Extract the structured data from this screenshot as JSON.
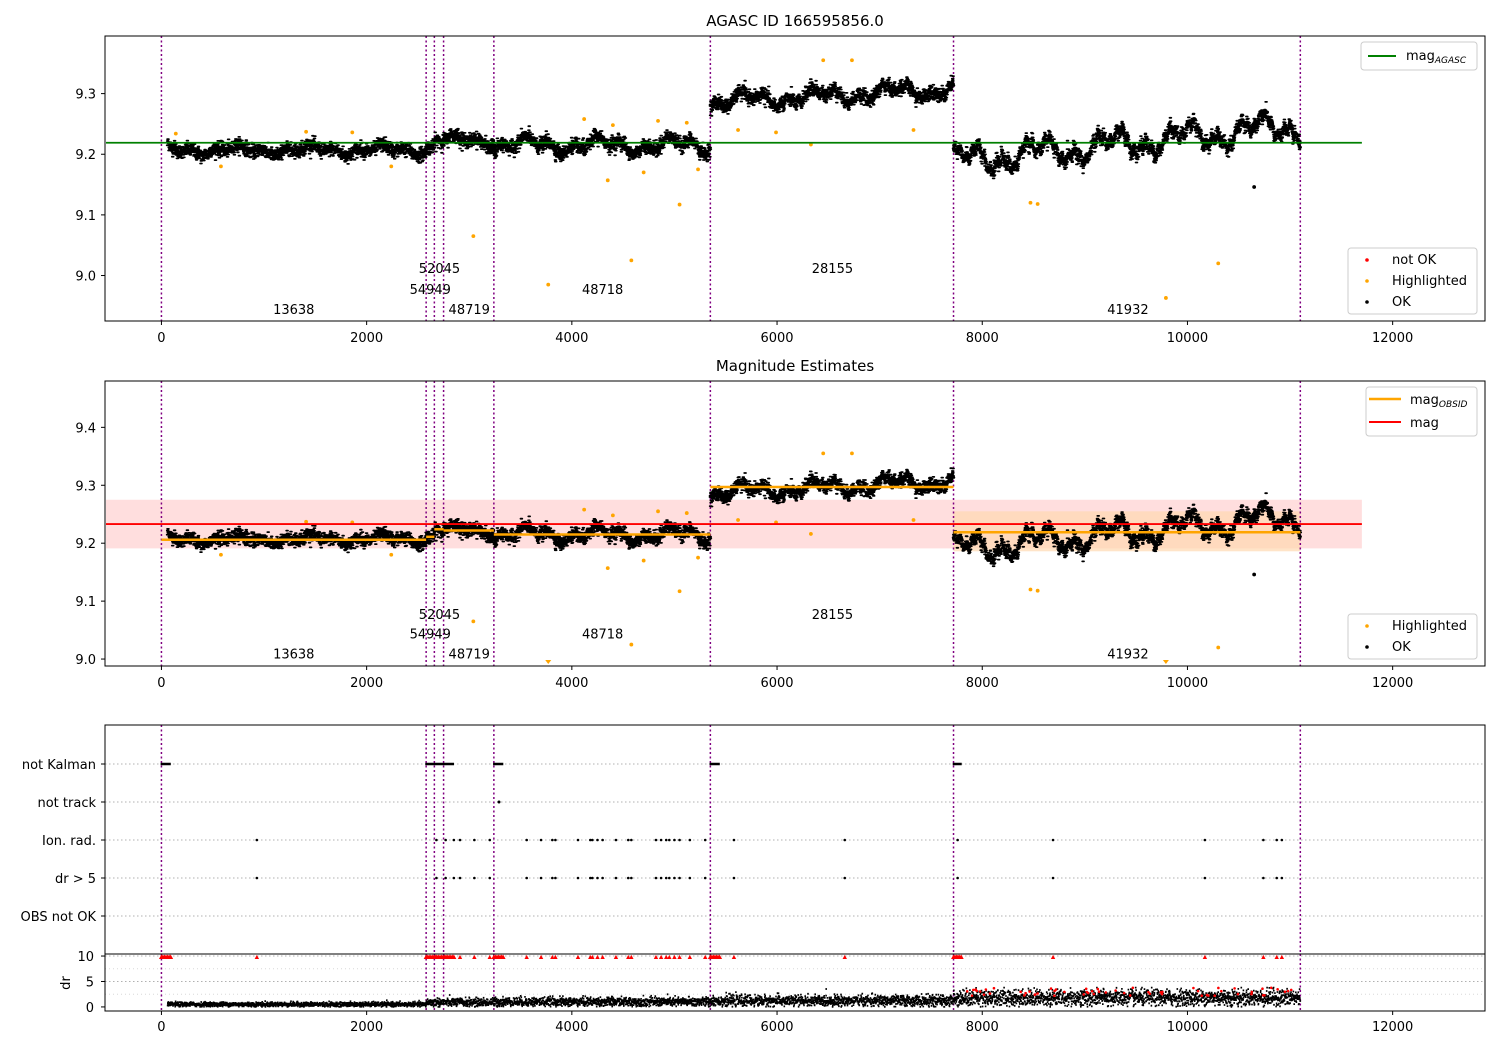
{
  "figure": {
    "background": "#ffffff"
  },
  "colors": {
    "ok": "#000000",
    "highlighted": "#ffa500",
    "not_ok": "#ff0000",
    "agasc_line": "#008000",
    "obsid_mag": "#ffa500",
    "mag_line": "#ff0000",
    "obs_boundary": "#800080",
    "band_global": "#ffd6d6",
    "band_obsid": "#ffd8b0"
  },
  "chart_data": [
    {
      "type": "scatter",
      "id": "top",
      "title": "AGASC ID 166595856.0",
      "xlim": [
        -550,
        12900
      ],
      "ylim": [
        8.925,
        9.395
      ],
      "xticks": [
        0,
        2000,
        4000,
        6000,
        8000,
        10000,
        12000
      ],
      "xtick_labels": [
        "0",
        "2000",
        "4000",
        "6000",
        "8000",
        "10000",
        "12000"
      ],
      "yticks": [
        9.0,
        9.1,
        9.2,
        9.3
      ],
      "ytick_labels": [
        "9.0",
        "9.1",
        "9.2",
        "9.3"
      ],
      "obs_boundaries": [
        0,
        2580,
        2660,
        2750,
        3240,
        5350,
        7720,
        11100
      ],
      "obsid_labels": [
        {
          "text": "13638",
          "x": 1290,
          "y": 8.945
        },
        {
          "text": "54949",
          "x": 2620,
          "y": 8.978
        },
        {
          "text": "52045",
          "x": 2710,
          "y": 9.012
        },
        {
          "text": "48719",
          "x": 3000,
          "y": 8.945
        },
        {
          "text": "48718",
          "x": 4300,
          "y": 8.978
        },
        {
          "text": "28155",
          "x": 6540,
          "y": 9.012
        },
        {
          "text": "41932",
          "x": 9420,
          "y": 8.945
        }
      ],
      "reference_line": {
        "name": "mag_AGASC",
        "y": 9.219,
        "x_range": [
          -550,
          11700
        ]
      },
      "segments": [
        {
          "obsid": "13638",
          "x_range": [
            60,
            2580
          ],
          "mean": 9.207,
          "trend": 0.0,
          "amp": 0.012
        },
        {
          "obsid": "54949",
          "x_range": [
            2580,
            2660
          ],
          "mean": 9.211,
          "trend": 0.0,
          "amp": 0.012
        },
        {
          "obsid": "52045",
          "x_range": [
            2660,
            2750
          ],
          "mean": 9.224,
          "trend": 0.0,
          "amp": 0.013
        },
        {
          "obsid": "48719",
          "x_range": [
            2750,
            3240
          ],
          "mean": 9.222,
          "trend": 0.0,
          "amp": 0.014
        },
        {
          "obsid": "48718",
          "x_range": [
            3240,
            5350
          ],
          "mean": 9.215,
          "trend": 0.0,
          "amp": 0.02
        },
        {
          "obsid": "28155",
          "x_range": [
            5350,
            7720
          ],
          "mean": 9.297,
          "trend": 0.022,
          "amp": 0.02
        },
        {
          "obsid": "41932",
          "x_range": [
            7720,
            11100
          ],
          "mean": 9.218,
          "trend": 0.06,
          "amp": 0.035
        }
      ],
      "highlighted_points": [
        {
          "x": 3040,
          "y": 9.065
        },
        {
          "x": 3770,
          "y": 8.985
        },
        {
          "x": 4350,
          "y": 9.157
        },
        {
          "x": 4580,
          "y": 9.025
        },
        {
          "x": 5050,
          "y": 9.117
        },
        {
          "x": 5230,
          "y": 9.175
        },
        {
          "x": 4700,
          "y": 9.17
        },
        {
          "x": 4840,
          "y": 9.255
        },
        {
          "x": 5120,
          "y": 9.252
        },
        {
          "x": 4120,
          "y": 9.258
        },
        {
          "x": 4400,
          "y": 9.248
        },
        {
          "x": 6330,
          "y": 9.216
        },
        {
          "x": 6450,
          "y": 9.355
        },
        {
          "x": 6730,
          "y": 9.355
        },
        {
          "x": 7330,
          "y": 9.24
        },
        {
          "x": 5620,
          "y": 9.24
        },
        {
          "x": 5990,
          "y": 9.236
        },
        {
          "x": 8470,
          "y": 9.12
        },
        {
          "x": 8540,
          "y": 9.118
        },
        {
          "x": 9790,
          "y": 8.963
        },
        {
          "x": 10300,
          "y": 9.02
        },
        {
          "x": 580,
          "y": 9.18
        },
        {
          "x": 1410,
          "y": 9.237
        },
        {
          "x": 1860,
          "y": 9.236
        },
        {
          "x": 2240,
          "y": 9.18
        },
        {
          "x": 140,
          "y": 9.234
        }
      ],
      "ok_isolated_points": [
        {
          "x": 10650,
          "y": 9.146
        }
      ],
      "legends": [
        {
          "position": "upper-right",
          "entries": [
            "mag"
          ],
          "subscripts": [
            "AGASC"
          ]
        },
        {
          "position": "lower-right",
          "entries": [
            "not OK",
            "Highlighted",
            "OK"
          ]
        }
      ]
    },
    {
      "type": "scatter",
      "id": "middle",
      "title": "Magnitude Estimates",
      "xlim": [
        -550,
        12900
      ],
      "ylim": [
        8.988,
        9.48
      ],
      "xticks": [
        0,
        2000,
        4000,
        6000,
        8000,
        10000,
        12000
      ],
      "xtick_labels": [
        "0",
        "2000",
        "4000",
        "6000",
        "8000",
        "10000",
        "12000"
      ],
      "yticks": [
        9.0,
        9.1,
        9.2,
        9.3,
        9.4
      ],
      "ytick_labels": [
        "9.0",
        "9.1",
        "9.2",
        "9.3",
        "9.4"
      ],
      "obs_boundaries": [
        0,
        2580,
        2660,
        2750,
        3240,
        5350,
        7720,
        11100
      ],
      "obsid_labels": [
        {
          "text": "13638",
          "x": 1290,
          "y": 9.01
        },
        {
          "text": "54949",
          "x": 2620,
          "y": 9.044
        },
        {
          "text": "52045",
          "x": 2710,
          "y": 9.078
        },
        {
          "text": "48719",
          "x": 3000,
          "y": 9.01
        },
        {
          "text": "48718",
          "x": 4300,
          "y": 9.044
        },
        {
          "text": "28155",
          "x": 6540,
          "y": 9.078
        },
        {
          "text": "41932",
          "x": 9420,
          "y": 9.01
        }
      ],
      "mag": {
        "name": "mag",
        "y": 9.233,
        "band": [
          9.191,
          9.275
        ],
        "x_range": [
          -550,
          11700
        ]
      },
      "mag_obsid": [
        {
          "x_range": [
            0,
            2580
          ],
          "y": 9.206
        },
        {
          "x_range": [
            2580,
            2660
          ],
          "y": 9.211
        },
        {
          "x_range": [
            2660,
            2750
          ],
          "y": 9.224
        },
        {
          "x_range": [
            2750,
            3240
          ],
          "y": 9.222
        },
        {
          "x_range": [
            3240,
            5350
          ],
          "y": 9.215
        },
        {
          "x_range": [
            5350,
            7720
          ],
          "y": 9.297
        },
        {
          "x_range": [
            7720,
            11100
          ],
          "y": 9.219
        }
      ],
      "obsid_band": {
        "x_range": [
          7720,
          11100
        ],
        "band": [
          9.186,
          9.255
        ]
      },
      "highlighted_points": [
        {
          "x": 3040,
          "y": 9.065
        },
        {
          "x": 4350,
          "y": 9.157
        },
        {
          "x": 4580,
          "y": 9.025
        },
        {
          "x": 5050,
          "y": 9.117
        },
        {
          "x": 5230,
          "y": 9.175
        },
        {
          "x": 4700,
          "y": 9.17
        },
        {
          "x": 4840,
          "y": 9.255
        },
        {
          "x": 5120,
          "y": 9.252
        },
        {
          "x": 4120,
          "y": 9.258
        },
        {
          "x": 4400,
          "y": 9.248
        },
        {
          "x": 6330,
          "y": 9.216
        },
        {
          "x": 6450,
          "y": 9.355
        },
        {
          "x": 6730,
          "y": 9.355
        },
        {
          "x": 7330,
          "y": 9.24
        },
        {
          "x": 5620,
          "y": 9.24
        },
        {
          "x": 5990,
          "y": 9.236
        },
        {
          "x": 8470,
          "y": 9.12
        },
        {
          "x": 8540,
          "y": 9.118
        },
        {
          "x": 10300,
          "y": 9.02
        },
        {
          "x": 580,
          "y": 9.18
        },
        {
          "x": 1410,
          "y": 9.237
        },
        {
          "x": 1860,
          "y": 9.236
        },
        {
          "x": 2240,
          "y": 9.18
        }
      ],
      "offscale_markers": [
        {
          "x": 3770
        },
        {
          "x": 9790
        }
      ],
      "ok_isolated_points": [
        {
          "x": 10650,
          "y": 9.146
        }
      ],
      "legends": [
        {
          "position": "upper-right",
          "entries": [
            "mag",
            "mag"
          ],
          "subscripts": [
            "OBSID",
            ""
          ]
        },
        {
          "position": "lower-right",
          "entries": [
            "Highlighted",
            "OK"
          ]
        }
      ]
    },
    {
      "type": "scatter",
      "id": "flags",
      "xlim": [
        -550,
        12900
      ],
      "categories": [
        "not Kalman",
        "not track",
        "Ion. rad.",
        "dr > 5",
        "OBS not OK"
      ],
      "obs_boundaries": [
        0,
        2580,
        2660,
        2750,
        3240,
        5350,
        7720,
        11100
      ],
      "not_kalman_ranges": [
        [
          0,
          90
        ],
        [
          2580,
          2850
        ],
        [
          3240,
          3330
        ],
        [
          5350,
          5440
        ],
        [
          7720,
          7800
        ]
      ],
      "not_track_points": [
        3290
      ],
      "flag_times": [
        930,
        2680,
        2770,
        2850,
        2910,
        3050,
        3200,
        3560,
        3700,
        3810,
        3840,
        4060,
        4180,
        4200,
        4250,
        4300,
        4430,
        4550,
        4580,
        4820,
        4870,
        4920,
        4950,
        5000,
        5050,
        5150,
        5300,
        5580,
        6660,
        7760,
        8690,
        10170,
        10740,
        10870,
        10920
      ]
    },
    {
      "type": "scatter",
      "id": "dr",
      "xlim": [
        -550,
        12900
      ],
      "ylabel": "dr",
      "ylim": [
        -0.8,
        10.4
      ],
      "yticks": [
        0,
        5,
        10
      ],
      "ytick_labels": [
        "0",
        "5",
        "10"
      ],
      "obs_boundaries": [
        0,
        2580,
        2660,
        2750,
        3240,
        5350,
        7720,
        11100
      ],
      "xticks": [
        0,
        2000,
        4000,
        6000,
        8000,
        10000,
        12000
      ],
      "xtick_labels": [
        "0",
        "2000",
        "4000",
        "6000",
        "8000",
        "10000",
        "12000"
      ],
      "red_cap_value": 9.8,
      "dr_segments": [
        {
          "x_range": [
            60,
            2580
          ],
          "level": 0.5
        },
        {
          "x_range": [
            2580,
            3240
          ],
          "level": 0.9
        },
        {
          "x_range": [
            3240,
            5350
          ],
          "level": 1.0
        },
        {
          "x_range": [
            5350,
            7720
          ],
          "level": 1.2
        },
        {
          "x_range": [
            7720,
            11100
          ],
          "level": 1.8
        }
      ]
    }
  ]
}
